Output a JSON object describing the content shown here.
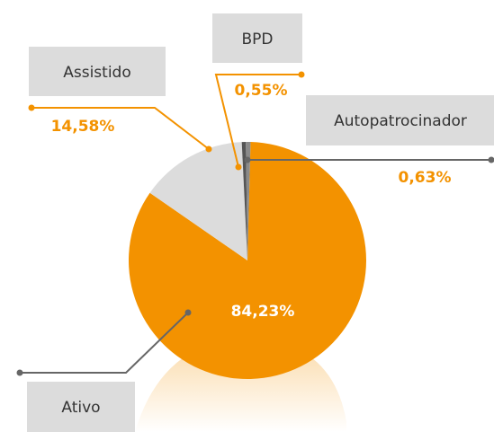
{
  "chart_data": {
    "type": "pie",
    "categories": [
      "Ativo",
      "Assistido",
      "BPD",
      "Autopatrocinador"
    ],
    "values": [
      84.23,
      14.58,
      0.55,
      0.63
    ],
    "value_labels": [
      "84,23%",
      "14,58%",
      "0,55%",
      "0,63%"
    ],
    "colors": [
      "#f39200",
      "#dcdcdc",
      "#555555",
      "#8a8a8a"
    ]
  }
}
